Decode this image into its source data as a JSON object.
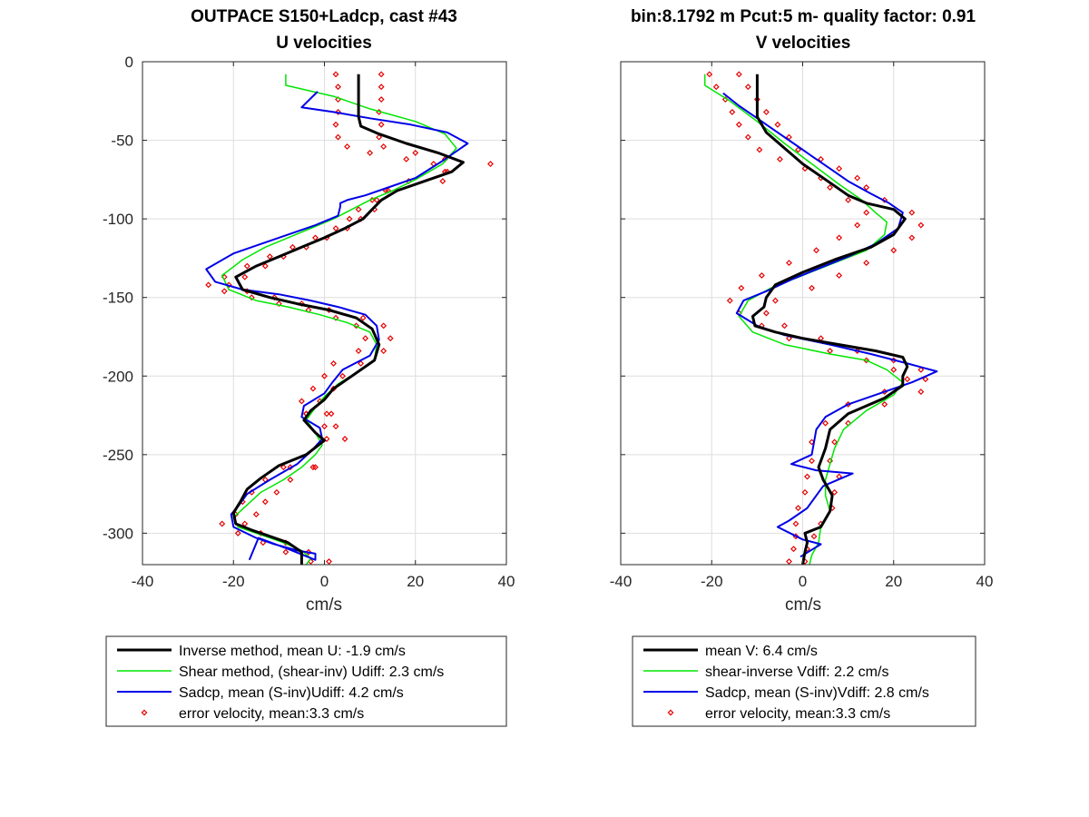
{
  "chart_data": [
    {
      "type": "line",
      "title_line1": "OUTPACE S150+Ladcp, cast #43",
      "title_line2": "U velocities",
      "xlabel": "cm/s",
      "ylabel": "",
      "xlim": [
        -40,
        40
      ],
      "ylim": [
        -320,
        0
      ],
      "xticks": [
        -40,
        -20,
        0,
        20,
        40
      ],
      "yticks": [
        0,
        -50,
        -100,
        -150,
        -200,
        -250,
        -300
      ],
      "grid": true,
      "legend_position": "below",
      "series": [
        {
          "key": "inverse",
          "name": "Inverse method, mean U:  -1.9 cm/s",
          "color": "#000000",
          "x": [
            7.5,
            7.5,
            7.5,
            7.5,
            8.0,
            12.0,
            18.0,
            25.0,
            30.5,
            28.0,
            22.0,
            16.0,
            12.5,
            10.5,
            8.5,
            4.5,
            0.0,
            -5.0,
            -10.0,
            -15.0,
            -19.5,
            -18.0,
            -12.0,
            -6.0,
            1.0,
            7.0,
            10.5,
            12.0,
            11.0,
            6.0,
            2.0,
            0.0,
            -3.0,
            -4.5,
            -2.0,
            0.0,
            -4.0,
            -10.0,
            -14.0,
            -17.0,
            -18.5,
            -20.0,
            -19.5,
            -16.0,
            -12.0,
            -8.0,
            -5.0,
            -5.0
          ],
          "y": [
            -8,
            -15,
            -25,
            -35,
            -41,
            -46,
            -52,
            -58,
            -64,
            -70,
            -76,
            -82,
            -88,
            -94,
            -100,
            -106,
            -112,
            -118,
            -124,
            -130,
            -137,
            -145,
            -150,
            -154,
            -158,
            -163,
            -170,
            -180,
            -190,
            -200,
            -208,
            -215,
            -222,
            -228,
            -236,
            -241,
            -250,
            -257,
            -265,
            -272,
            -280,
            -287,
            -294,
            -298,
            -302,
            -306,
            -312,
            -320
          ]
        },
        {
          "key": "shear",
          "name": "Shear method, (shear-inv)  Udiff:  2.3 cm/s",
          "color": "#00e600",
          "x": [
            -8.5,
            -8.5,
            2.0,
            10.0,
            20.0,
            26.5,
            29.0,
            26.0,
            20.0,
            15.0,
            10.0,
            6.0,
            2.0,
            -3.0,
            -8.0,
            -13.0,
            -18.0,
            -22.5,
            -21.0,
            -15.0,
            -8.0,
            -1.0,
            5.0,
            10.0,
            11.5,
            11.0,
            7.0,
            3.0,
            0.0,
            -2.0,
            -4.0,
            -2.0,
            -0.5,
            -2.0,
            -5.0,
            -9.0,
            -14.0,
            -17.0,
            -20.0,
            -19.0,
            -14.0,
            -9.0,
            -5.0,
            -3.0,
            -4.0
          ],
          "y": [
            -8,
            -15,
            -22,
            -30,
            -38,
            -46,
            -55,
            -65,
            -75,
            -82,
            -88,
            -94,
            -100,
            -106,
            -112,
            -118,
            -126,
            -136,
            -145,
            -152,
            -156,
            -161,
            -166,
            -172,
            -180,
            -190,
            -198,
            -205,
            -213,
            -220,
            -228,
            -236,
            -244,
            -250,
            -258,
            -266,
            -274,
            -282,
            -290,
            -296,
            -301,
            -306,
            -311,
            -316,
            -320
          ]
        },
        {
          "key": "sadcp",
          "name": "Sadcp, mean (S-inv)Udiff: 4.2 cm/s",
          "color": "#0000e6",
          "x": [
            -1.5,
            -5.0,
            2.0,
            10.0,
            19.0,
            27.0,
            31.5,
            26.0,
            20.0,
            14.0,
            9.0,
            5.0,
            3.5,
            3.5,
            3.0,
            -2.0,
            -8.0,
            -14.0,
            -20.0,
            -26.0,
            -24.0,
            -18.0,
            -10.0,
            -3.0,
            3.0,
            9.0,
            11.5,
            12.0,
            10.0,
            4.0,
            1.5,
            0.0,
            -4.5,
            -5.0,
            -1.0,
            -0.5,
            -3.0,
            -6.0,
            -12.0,
            -17.0,
            -19.0,
            -20.5,
            -20.0,
            -15.0,
            -11.0,
            -6.0,
            -2.0,
            -2.0,
            -8.0,
            -14.5,
            -16.5
          ],
          "y": [
            -19,
            -29,
            -32,
            -36,
            -40,
            -45,
            -52,
            -63,
            -74,
            -80,
            -85,
            -88,
            -90,
            -92,
            -98,
            -104,
            -110,
            -116,
            -122,
            -132,
            -140,
            -145,
            -148,
            -152,
            -156,
            -161,
            -168,
            -177,
            -187,
            -196,
            -205,
            -211,
            -219,
            -226,
            -233,
            -240,
            -248,
            -256,
            -266,
            -275,
            -283,
            -288,
            -296,
            -303,
            -307,
            -311,
            -313,
            -317,
            -310,
            -303,
            -317
          ]
        },
        {
          "key": "err",
          "name": "error velocity, mean:3.3 cm/s",
          "color": "#e60000",
          "marker": "diamond",
          "x_left": [
            2.5,
            3.0,
            3.0,
            3.0,
            2.5,
            3.0,
            5.0,
            10.0,
            18.0,
            24.0,
            27.0,
            26.0,
            14.0,
            10.5,
            7.5,
            5.5,
            2.5,
            -2.0,
            -7.0,
            -12.0,
            -17.0,
            -22.0,
            -25.5,
            -22.0,
            -16.0,
            -10.0,
            -3.5,
            2.5,
            7.0,
            9.0,
            7.5,
            2.0,
            0.0,
            -2.5,
            -5.0,
            -4.0,
            0.0,
            0.5,
            -9.0,
            -13.0,
            -16.0,
            -18.0,
            -19.5,
            -22.5,
            -19.0,
            -13.5,
            -8.5,
            -3.0,
            -4.0,
            -7.5
          ],
          "x_right": [
            12.5,
            12.5,
            12.5,
            12.0,
            12.5,
            12.0,
            13.0,
            20.0,
            26.5,
            36.5,
            26.5,
            18.5,
            13.5,
            11.5,
            11.0,
            8.0,
            5.0,
            0.5,
            -4.0,
            -9.0,
            -13.0,
            -17.5,
            -21.0,
            -17.0,
            -11.0,
            -5.0,
            1.0,
            8.5,
            13.0,
            14.5,
            13.0,
            8.0,
            4.0,
            2.0,
            -1.0,
            0.5,
            2.5,
            4.5,
            -2.0,
            -7.5,
            -10.5,
            -13.0,
            -15.0,
            -17.5,
            -14.0,
            -8.5,
            -3.5,
            1.0,
            1.5,
            -2.5
          ],
          "y": [
            -8,
            -16,
            -24,
            -32,
            -40,
            -48,
            -54,
            -58,
            -62,
            -65,
            -70,
            -76,
            -82,
            -88,
            -94,
            -100,
            -106,
            -112,
            -118,
            -124,
            -130,
            -137,
            -142,
            -146,
            -150,
            -154,
            -158,
            -163,
            -168,
            -176,
            -184,
            -192,
            -200,
            -208,
            -216,
            -224,
            -232,
            -240,
            -258,
            -266,
            -274,
            -280,
            -288,
            -294,
            -300,
            -306,
            -312,
            -318,
            -224,
            -258
          ]
        }
      ]
    },
    {
      "type": "line",
      "title_line1": "bin:8.1792 m  Pcut:5 m- quality factor:  0.91",
      "title_line2": "V velocities",
      "xlabel": "cm/s",
      "ylabel": "",
      "xlim": [
        -40,
        40
      ],
      "ylim": [
        -320,
        0
      ],
      "xticks": [
        -40,
        -20,
        0,
        20,
        40
      ],
      "yticks": [
        0,
        -50,
        -100,
        -150,
        -200,
        -250,
        -300
      ],
      "grid": true,
      "legend_position": "below",
      "series": [
        {
          "key": "inverse",
          "name": "mean V:  6.4 cm/s",
          "color": "#000000",
          "x": [
            -10.0,
            -10.0,
            -10.0,
            -10.0,
            -8.0,
            -4.0,
            0.0,
            5.0,
            10.0,
            14.0,
            20.0,
            22.5,
            20.0,
            15.0,
            7.0,
            0.0,
            -6.0,
            -8.0,
            -8.5,
            -11.0,
            -10.5,
            -6.0,
            0.0,
            8.0,
            16.0,
            22.0,
            23.0,
            22.0,
            22.0,
            18.0,
            10.0,
            6.0,
            5.0,
            3.5,
            4.5,
            6.5,
            6.0,
            4.0,
            0.5,
            1.0,
            0.5,
            0.0
          ],
          "y": [
            -8,
            -15,
            -25,
            -35,
            -45,
            -55,
            -65,
            -75,
            -85,
            -90,
            -94,
            -100,
            -110,
            -118,
            -126,
            -134,
            -142,
            -150,
            -156,
            -162,
            -168,
            -172,
            -176,
            -180,
            -184,
            -188,
            -194,
            -200,
            -206,
            -214,
            -224,
            -234,
            -246,
            -258,
            -266,
            -276,
            -286,
            -296,
            -300,
            -306,
            -312,
            -320
          ]
        },
        {
          "key": "shear",
          "name": "shear-inverse Vdiff:  2.2 cm/s",
          "color": "#00e600",
          "x": [
            -21.5,
            -21.5,
            -16.0,
            -10.0,
            -4.0,
            2.0,
            8.0,
            13.0,
            16.0,
            18.5,
            18.0,
            14.0,
            7.0,
            0.0,
            -7.0,
            -12.0,
            -14.0,
            -11.0,
            -4.0,
            6.0,
            14.0,
            18.5,
            22.0,
            20.0,
            14.0,
            9.0,
            7.0,
            6.0,
            5.0,
            5.0,
            6.0,
            4.0,
            3.5,
            2.0,
            1.5
          ],
          "y": [
            -8,
            -15,
            -25,
            -38,
            -52,
            -65,
            -78,
            -88,
            -96,
            -102,
            -110,
            -120,
            -128,
            -136,
            -144,
            -152,
            -162,
            -172,
            -180,
            -186,
            -190,
            -196,
            -204,
            -212,
            -222,
            -234,
            -246,
            -256,
            -266,
            -276,
            -286,
            -296,
            -306,
            -314,
            -320
          ]
        },
        {
          "key": "sadcp",
          "name": "Sadcp, mean (S-inv)Vdiff: 2.8 cm/s",
          "color": "#0000e6",
          "x": [
            -17.5,
            -14.0,
            -10.0,
            -6.0,
            -2.0,
            2.0,
            6.0,
            10.0,
            15.0,
            19.0,
            22.0,
            21.0,
            16.0,
            10.0,
            4.0,
            -2.0,
            -8.0,
            -13.0,
            -14.5,
            -10.0,
            -4.0,
            6.0,
            15.0,
            23.0,
            29.5,
            24.0,
            18.0,
            10.0,
            5.0,
            3.0,
            2.0,
            -2.5,
            3.0,
            11.0,
            4.5,
            1.0,
            -3.0,
            -5.5,
            0.0,
            4.0,
            -0.5
          ],
          "y": [
            -20,
            -28,
            -36,
            -44,
            -52,
            -60,
            -68,
            -76,
            -84,
            -90,
            -96,
            -106,
            -116,
            -124,
            -131,
            -138,
            -146,
            -152,
            -160,
            -168,
            -174,
            -180,
            -186,
            -192,
            -197,
            -204,
            -210,
            -218,
            -226,
            -234,
            -250,
            -256,
            -260,
            -262,
            -270,
            -284,
            -292,
            -296,
            -304,
            -307,
            -315
          ]
        },
        {
          "key": "err",
          "name": "error velocity, mean:3.3 cm/s",
          "color": "#e60000",
          "marker": "diamond",
          "x_left": [
            -20.5,
            -19.0,
            -17.0,
            -15.5,
            -14.0,
            -12.0,
            -9.5,
            -5.0,
            0.5,
            4.0,
            6.0,
            10.0,
            14.0,
            12.0,
            8.0,
            3.0,
            -3.0,
            -9.0,
            -13.5,
            -16.0,
            -14.0,
            -9.0,
            -3.0,
            6.0,
            14.0,
            20.0,
            23.0,
            18.0,
            10.0,
            5.0,
            2.0,
            2.0,
            1.0,
            0.5,
            -1.0,
            -1.5,
            -1.5,
            -2.0,
            -3.0
          ],
          "x_right": [
            -14.0,
            -12.0,
            -10.0,
            -8.0,
            -5.5,
            -3.0,
            -1.0,
            4.0,
            8.0,
            12.0,
            14.0,
            18.0,
            24.0,
            26.0,
            24.0,
            20.0,
            14.0,
            8.0,
            2.0,
            -6.0,
            -8.0,
            -4.0,
            4.0,
            12.0,
            20.0,
            26.0,
            27.0,
            26.0,
            18.0,
            10.0,
            7.0,
            6.0,
            8.0,
            7.0,
            6.5,
            4.0,
            2.5,
            1.0,
            0.5
          ],
          "y": [
            -8,
            -16,
            -24,
            -32,
            -40,
            -48,
            -56,
            -62,
            -68,
            -74,
            -80,
            -88,
            -96,
            -104,
            -112,
            -120,
            -128,
            -136,
            -144,
            -152,
            -160,
            -168,
            -176,
            -184,
            -190,
            -196,
            -202,
            -210,
            -218,
            -230,
            -242,
            -254,
            -264,
            -274,
            -284,
            -294,
            -302,
            -310,
            -318
          ]
        }
      ]
    }
  ]
}
